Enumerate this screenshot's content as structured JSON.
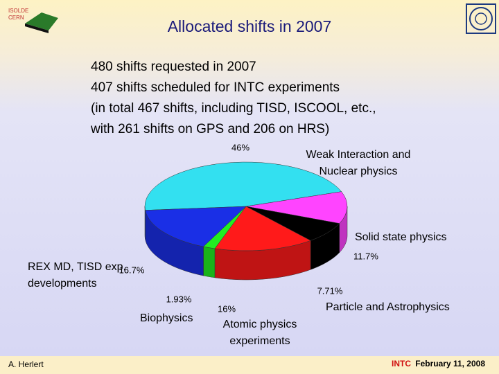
{
  "header": {
    "title": "Allocated shifts in 2007",
    "logo_lines": [
      "ISOLDE",
      "CERN"
    ]
  },
  "body": {
    "lines": [
      "480 shifts requested in 2007",
      "407 shifts scheduled for INTC experiments",
      "(in total 467 shifts, including TISD, ISCOOL, etc.,",
      "with 261 shifts on GPS and 206 on HRS)"
    ]
  },
  "chart_data": {
    "type": "pie",
    "categories": [
      "Weak Interaction and Nuclear physics",
      "Solid state physics",
      "Particle and Astrophysics",
      "Atomic physics experiments",
      "Biophysics",
      "REX MD, TISD exp. developments"
    ],
    "values": [
      46,
      11.7,
      7.71,
      16,
      1.93,
      16.7
    ],
    "value_labels": [
      "46%",
      "11.7%",
      "7.71%",
      "16%",
      "1.93%",
      "16.7%"
    ],
    "colors": [
      "#33e0f0",
      "#ff44ff",
      "#000000",
      "#ff1a1a",
      "#22ee22",
      "#1a2fe6"
    ]
  },
  "footer": {
    "author": "A. Herlert",
    "event": "INTC",
    "date": "February 11, 2008"
  }
}
